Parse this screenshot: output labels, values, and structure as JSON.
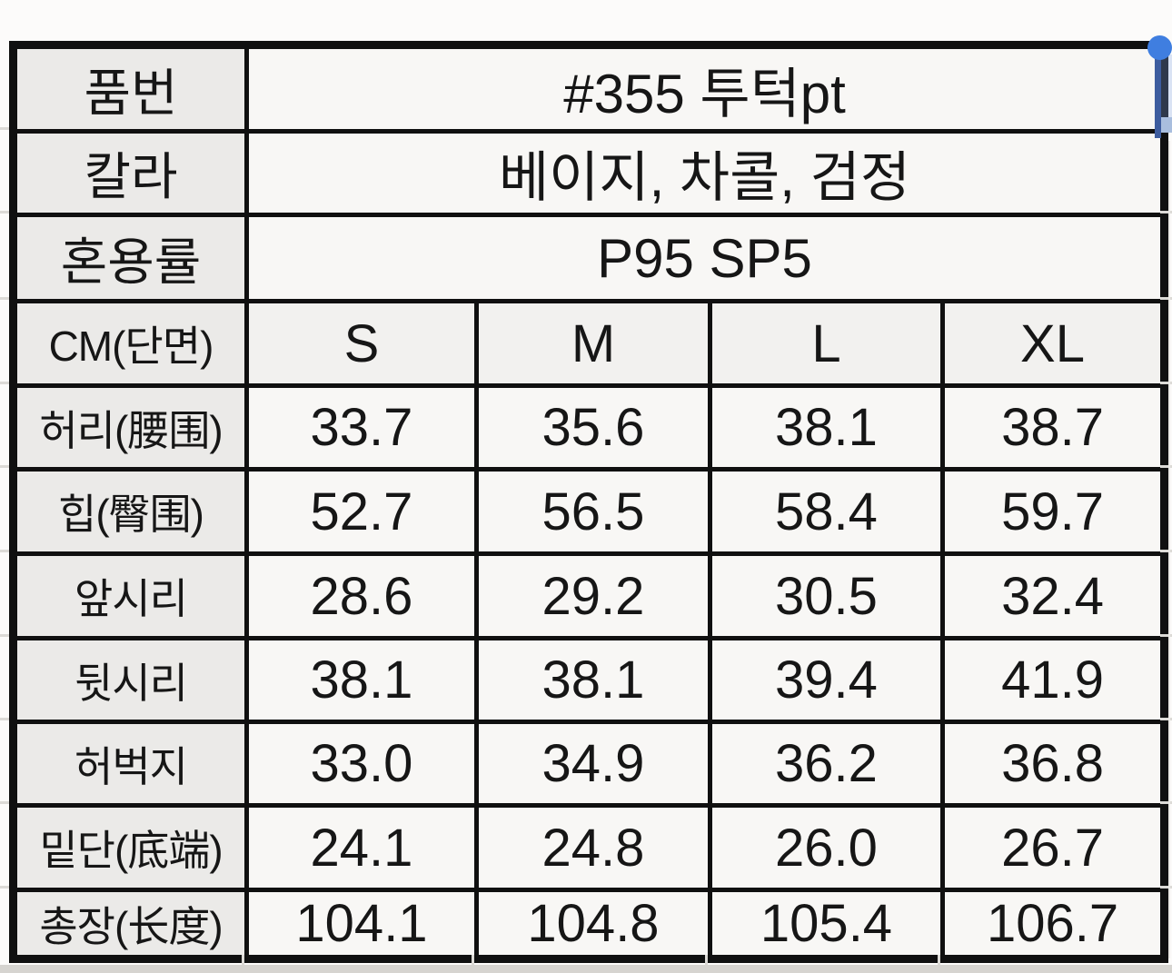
{
  "table": {
    "info_rows": [
      {
        "label": "품번",
        "value": "#355 투턱pt"
      },
      {
        "label": "칼라",
        "value": "베이지, 차콜, 검정"
      },
      {
        "label": "혼용률",
        "value": "P95 SP5"
      }
    ],
    "size_header": {
      "label": "CM(단면)",
      "sizes": [
        "S",
        "M",
        "L",
        "XL"
      ]
    },
    "measure_rows": [
      {
        "label": "허리(腰围)",
        "values": [
          "33.7",
          "35.6",
          "38.1",
          "38.7"
        ]
      },
      {
        "label": "힙(臀围)",
        "values": [
          "52.7",
          "56.5",
          "58.4",
          "59.7"
        ]
      },
      {
        "label": "앞시리",
        "values": [
          "28.6",
          "29.2",
          "30.5",
          "32.4"
        ]
      },
      {
        "label": "뒷시리",
        "values": [
          "38.1",
          "38.1",
          "39.4",
          "41.9"
        ]
      },
      {
        "label": "허벅지",
        "values": [
          "33.0",
          "34.9",
          "36.2",
          "36.8"
        ]
      },
      {
        "label": "밑단(底端)",
        "values": [
          "24.1",
          "24.8",
          "26.0",
          "26.7"
        ]
      },
      {
        "label": "총장(长度)",
        "values": [
          "104.1",
          "104.8",
          "105.4",
          "106.7"
        ]
      }
    ]
  },
  "colors": {
    "selection_handle": "#4285f4",
    "table_border": "#101010",
    "label_cell_bg": "#ebeae8",
    "value_cell_bg": "#f8f7f5"
  }
}
